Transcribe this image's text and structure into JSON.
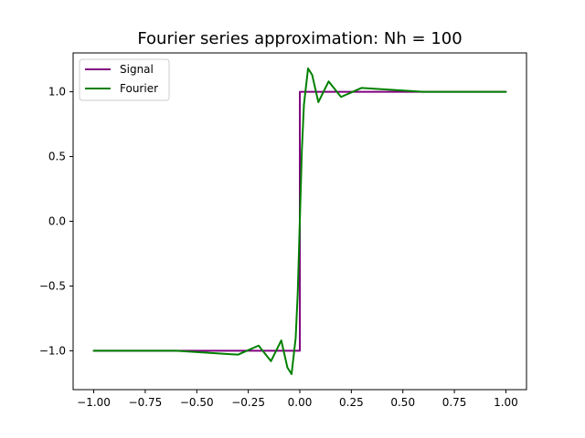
{
  "chart_data": {
    "type": "line",
    "title": "Fourier series approximation: Nh = 100",
    "xlabel": "",
    "ylabel": "",
    "xlim": [
      -1.1,
      1.1
    ],
    "ylim": [
      -1.3,
      1.3
    ],
    "xticks": [
      -1.0,
      -0.75,
      -0.5,
      -0.25,
      0.0,
      0.25,
      0.5,
      0.75,
      1.0
    ],
    "xtick_labels": [
      "−1.00",
      "−0.75",
      "−0.50",
      "−0.25",
      "0.00",
      "0.25",
      "0.50",
      "0.75",
      "1.00"
    ],
    "yticks": [
      -1.0,
      -0.5,
      0.0,
      0.5,
      1.0
    ],
    "ytick_labels": [
      "−1.0",
      "−0.5",
      "0.0",
      "0.5",
      "1.0"
    ],
    "grid": false,
    "legend_position": "top-left",
    "series": [
      {
        "name": "Signal",
        "color": "#800080",
        "x": [
          -1.0,
          0.0,
          0.0,
          1.0
        ],
        "y": [
          -1.0,
          -1.0,
          1.0,
          1.0
        ]
      },
      {
        "name": "Fourier",
        "color": "#008000",
        "x": [
          -1.0,
          -0.6,
          -0.3,
          -0.2,
          -0.14,
          -0.09,
          -0.06,
          -0.04,
          -0.02,
          -0.01,
          0.0,
          0.01,
          0.02,
          0.04,
          0.06,
          0.09,
          0.14,
          0.2,
          0.3,
          0.6,
          1.0
        ],
        "y": [
          -1.0,
          -1.0,
          -1.03,
          -0.96,
          -1.08,
          -0.92,
          -1.13,
          -1.18,
          -0.9,
          -0.55,
          0.0,
          0.55,
          0.9,
          1.18,
          1.13,
          0.92,
          1.08,
          0.96,
          1.03,
          1.0,
          1.0
        ]
      }
    ]
  }
}
